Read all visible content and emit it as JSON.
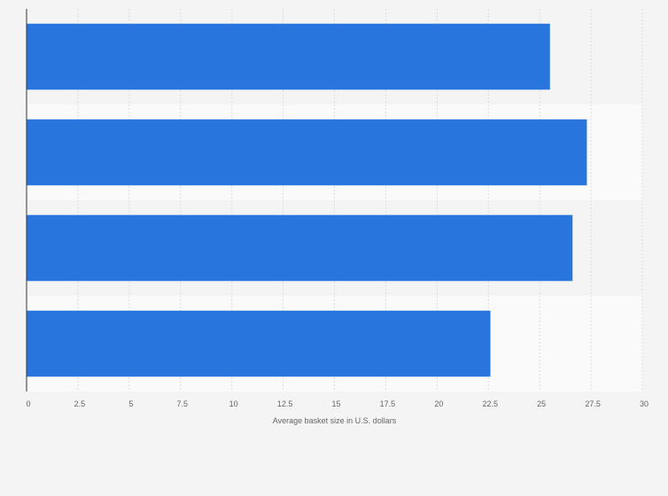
{
  "chart_data": {
    "type": "bar",
    "orientation": "horizontal",
    "categories": [
      "",
      "",
      "",
      ""
    ],
    "values": [
      25.5,
      27.3,
      26.6,
      22.6
    ],
    "title": "",
    "xlabel": "Average basket size in U.S. dollars",
    "ylabel": "",
    "xlim": [
      0,
      30
    ],
    "x_ticks": [
      "0",
      "2.5",
      "5",
      "7.5",
      "10",
      "12.5",
      "15",
      "17.5",
      "20",
      "22.5",
      "25",
      "27.5",
      "30"
    ],
    "grid": true,
    "legend": "none",
    "bar_color": "#2876dd"
  }
}
